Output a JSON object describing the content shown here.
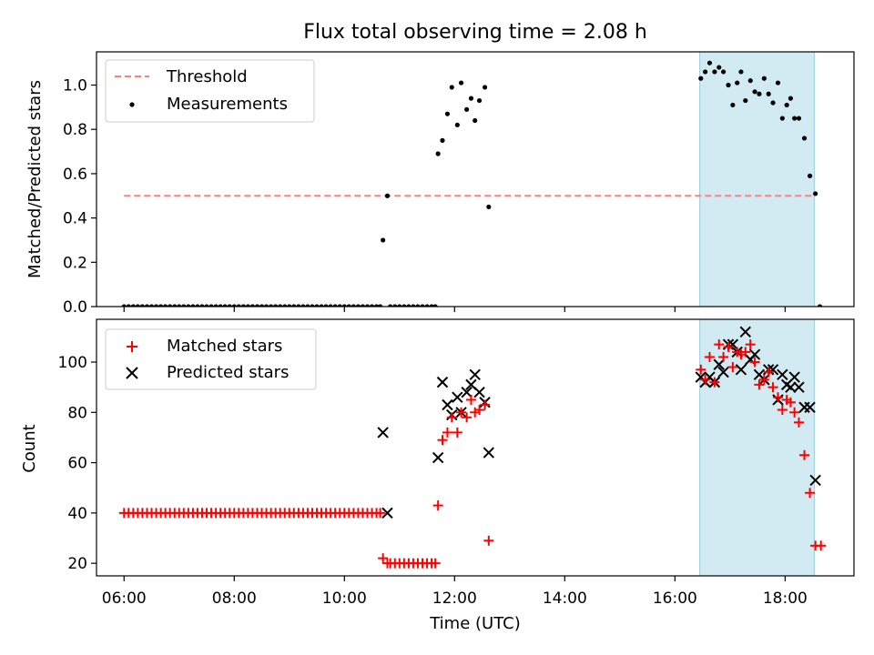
{
  "title": "Flux total observing time = 2.08 h",
  "colors": {
    "threshold": "#ff7f7f",
    "measurement": "#000000",
    "matched": "#ff0000",
    "predicted": "#000000",
    "shade": "#add8e6"
  },
  "chart_data": [
    {
      "type": "scatter",
      "panel": "top",
      "ylabel": "Matched/Predicted stars",
      "xlim": [
        5.5,
        19.25
      ],
      "ylim": [
        0,
        1.15
      ],
      "yticks": [
        0.0,
        0.2,
        0.4,
        0.6,
        0.8,
        1.0
      ],
      "ytick_labels": [
        "0.0",
        "0.2",
        "0.4",
        "0.6",
        "0.8",
        "1.0"
      ],
      "xticks": [
        6,
        8,
        10,
        12,
        14,
        16,
        18
      ],
      "shaded_span": [
        16.45,
        18.53
      ],
      "legend": {
        "position": "upper-left",
        "threshold_label": "Threshold",
        "measurements_label": "Measurements"
      },
      "threshold": {
        "value": 0.5,
        "x_range": [
          6.0,
          18.55
        ]
      },
      "measurements": {
        "zero_times": [
          6.0,
          6.083,
          6.167,
          6.25,
          6.333,
          6.417,
          6.5,
          6.583,
          6.667,
          6.75,
          6.833,
          6.917,
          7.0,
          7.083,
          7.167,
          7.25,
          7.333,
          7.417,
          7.5,
          7.583,
          7.667,
          7.75,
          7.833,
          7.917,
          8.0,
          8.083,
          8.167,
          8.25,
          8.333,
          8.417,
          8.5,
          8.583,
          8.667,
          8.75,
          8.833,
          8.917,
          9.0,
          9.083,
          9.167,
          9.25,
          9.333,
          9.417,
          9.5,
          9.583,
          9.667,
          9.75,
          9.833,
          9.917,
          10.0,
          10.083,
          10.167,
          10.25,
          10.333,
          10.417,
          10.5,
          10.583,
          10.65,
          10.833,
          10.917,
          11.0,
          11.083,
          11.167,
          11.25,
          11.333,
          11.417,
          11.5,
          11.583,
          11.65,
          18.63
        ],
        "points": [
          [
            10.7,
            0.3
          ],
          [
            10.78,
            0.5
          ],
          [
            11.7,
            0.69
          ],
          [
            11.78,
            0.75
          ],
          [
            11.87,
            0.87
          ],
          [
            11.95,
            0.99
          ],
          [
            12.05,
            0.82
          ],
          [
            12.12,
            1.01
          ],
          [
            12.22,
            0.89
          ],
          [
            12.3,
            0.94
          ],
          [
            12.37,
            0.84
          ],
          [
            12.45,
            0.93
          ],
          [
            12.55,
            0.99
          ],
          [
            12.62,
            0.45
          ],
          [
            16.47,
            1.03
          ],
          [
            16.55,
            1.06
          ],
          [
            16.63,
            1.1
          ],
          [
            16.72,
            1.06
          ],
          [
            16.8,
            1.08
          ],
          [
            16.88,
            1.06
          ],
          [
            16.97,
            1.0
          ],
          [
            17.05,
            0.91
          ],
          [
            17.13,
            1.01
          ],
          [
            17.2,
            1.06
          ],
          [
            17.28,
            0.93
          ],
          [
            17.37,
            1.02
          ],
          [
            17.45,
            0.97
          ],
          [
            17.53,
            0.96
          ],
          [
            17.62,
            1.03
          ],
          [
            17.7,
            0.96
          ],
          [
            17.78,
            0.92
          ],
          [
            17.87,
            1.01
          ],
          [
            17.95,
            0.85
          ],
          [
            18.03,
            0.91
          ],
          [
            18.1,
            0.94
          ],
          [
            18.17,
            0.85
          ],
          [
            18.25,
            0.85
          ],
          [
            18.35,
            0.76
          ],
          [
            18.45,
            0.59
          ],
          [
            18.55,
            0.51
          ]
        ]
      }
    },
    {
      "type": "scatter",
      "panel": "bottom",
      "xlabel": "Time (UTC)",
      "ylabel": "Count",
      "xlim": [
        5.5,
        19.25
      ],
      "ylim": [
        15,
        117
      ],
      "yticks": [
        20,
        40,
        60,
        80,
        100
      ],
      "ytick_labels": [
        "20",
        "40",
        "60",
        "80",
        "100"
      ],
      "xticks": [
        6,
        8,
        10,
        12,
        14,
        16,
        18
      ],
      "xtick_labels": [
        "06:00",
        "08:00",
        "10:00",
        "12:00",
        "14:00",
        "16:00",
        "18:00"
      ],
      "shaded_span": [
        16.45,
        18.53
      ],
      "legend": {
        "position": "upper-left",
        "matched_label": "Matched stars",
        "predicted_label": "Predicted stars"
      },
      "matched_forty_times": [
        6.0,
        6.083,
        6.167,
        6.25,
        6.333,
        6.417,
        6.5,
        6.583,
        6.667,
        6.75,
        6.833,
        6.917,
        7.0,
        7.083,
        7.167,
        7.25,
        7.333,
        7.417,
        7.5,
        7.583,
        7.667,
        7.75,
        7.833,
        7.917,
        8.0,
        8.083,
        8.167,
        8.25,
        8.333,
        8.417,
        8.5,
        8.583,
        8.667,
        8.75,
        8.833,
        8.917,
        9.0,
        9.083,
        9.167,
        9.25,
        9.333,
        9.417,
        9.5,
        9.583,
        9.667,
        9.75,
        9.833,
        9.917,
        10.0,
        10.083,
        10.167,
        10.25,
        10.333,
        10.417,
        10.5,
        10.583,
        10.65
      ],
      "matched_twenty_times": [
        10.833,
        10.917,
        11.0,
        11.083,
        11.167,
        11.25,
        11.333,
        11.417,
        11.5,
        11.583,
        11.65
      ],
      "matched": [
        [
          10.7,
          22
        ],
        [
          10.78,
          20
        ],
        [
          11.7,
          43
        ],
        [
          11.78,
          69
        ],
        [
          11.87,
          72
        ],
        [
          11.95,
          78
        ],
        [
          12.05,
          72
        ],
        [
          12.12,
          80
        ],
        [
          12.22,
          78
        ],
        [
          12.3,
          85
        ],
        [
          12.37,
          80
        ],
        [
          12.45,
          81
        ],
        [
          12.55,
          83
        ],
        [
          12.62,
          29
        ],
        [
          16.47,
          97
        ],
        [
          16.55,
          93
        ],
        [
          16.63,
          102
        ],
        [
          16.72,
          92
        ],
        [
          16.8,
          107
        ],
        [
          16.88,
          102
        ],
        [
          16.97,
          106
        ],
        [
          17.05,
          98
        ],
        [
          17.13,
          104
        ],
        [
          17.2,
          103
        ],
        [
          17.28,
          104
        ],
        [
          17.37,
          107
        ],
        [
          17.45,
          100
        ],
        [
          17.53,
          91
        ],
        [
          17.62,
          93
        ],
        [
          17.7,
          96
        ],
        [
          17.78,
          90
        ],
        [
          17.87,
          86
        ],
        [
          17.95,
          81
        ],
        [
          18.03,
          85
        ],
        [
          18.1,
          84
        ],
        [
          18.17,
          80
        ],
        [
          18.25,
          76
        ],
        [
          18.35,
          63
        ],
        [
          18.45,
          48
        ],
        [
          18.55,
          27
        ],
        [
          18.65,
          27
        ]
      ],
      "predicted": [
        [
          10.7,
          72
        ],
        [
          10.78,
          40
        ],
        [
          11.7,
          62
        ],
        [
          11.78,
          92
        ],
        [
          11.87,
          83
        ],
        [
          11.95,
          79
        ],
        [
          12.05,
          86
        ],
        [
          12.12,
          80
        ],
        [
          12.22,
          88
        ],
        [
          12.3,
          91
        ],
        [
          12.37,
          95
        ],
        [
          12.45,
          88
        ],
        [
          12.55,
          84
        ],
        [
          12.62,
          64
        ],
        [
          16.47,
          94
        ],
        [
          16.55,
          92
        ],
        [
          16.63,
          94
        ],
        [
          16.72,
          92
        ],
        [
          16.8,
          99
        ],
        [
          16.88,
          96
        ],
        [
          16.97,
          107
        ],
        [
          17.05,
          107
        ],
        [
          17.13,
          104
        ],
        [
          17.2,
          97
        ],
        [
          17.28,
          112
        ],
        [
          17.37,
          101
        ],
        [
          17.45,
          103
        ],
        [
          17.53,
          95
        ],
        [
          17.62,
          93
        ],
        [
          17.7,
          97
        ],
        [
          17.78,
          97
        ],
        [
          17.87,
          85
        ],
        [
          17.95,
          95
        ],
        [
          18.03,
          91
        ],
        [
          18.1,
          90
        ],
        [
          18.17,
          94
        ],
        [
          18.25,
          90
        ],
        [
          18.35,
          82
        ],
        [
          18.45,
          82
        ],
        [
          18.55,
          53
        ]
      ]
    }
  ]
}
